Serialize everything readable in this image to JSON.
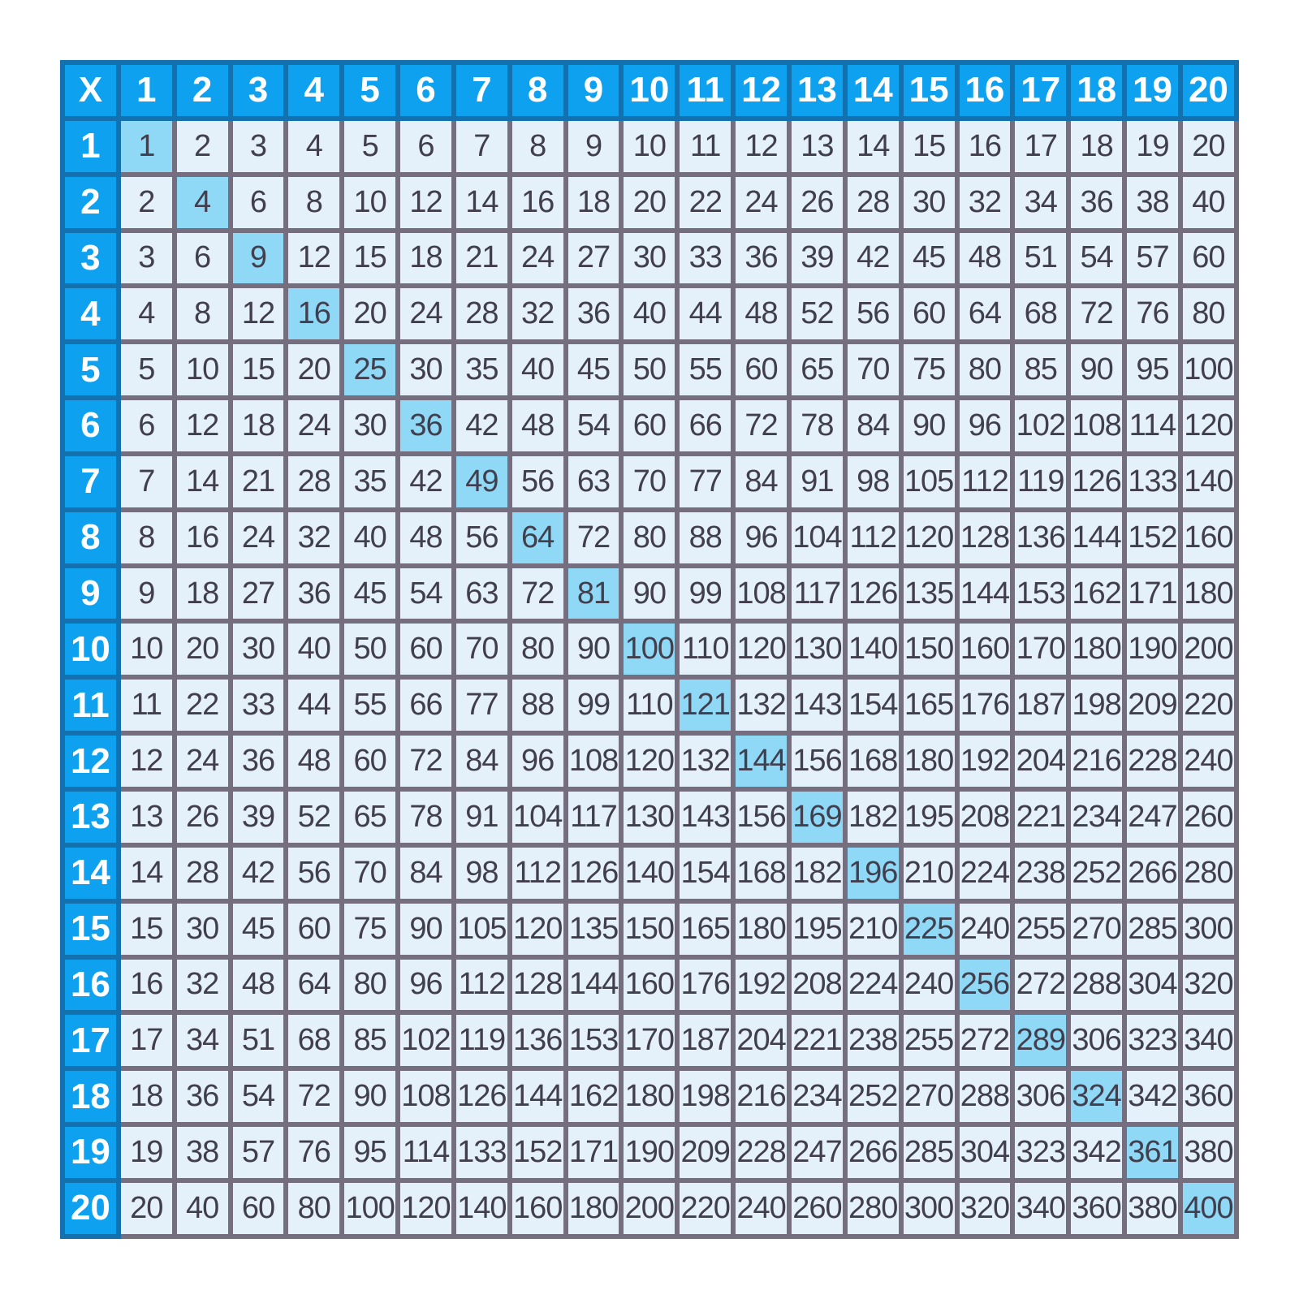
{
  "chart_data": {
    "type": "table",
    "corner_label": "X",
    "col_headers": [
      "1",
      "2",
      "3",
      "4",
      "5",
      "6",
      "7",
      "8",
      "9",
      "10",
      "11",
      "12",
      "13",
      "14",
      "15",
      "16",
      "17",
      "18",
      "19",
      "20"
    ],
    "row_headers": [
      "1",
      "2",
      "3",
      "4",
      "5",
      "6",
      "7",
      "8",
      "9",
      "10",
      "11",
      "12",
      "13",
      "14",
      "15",
      "16",
      "17",
      "18",
      "19",
      "20"
    ],
    "rows": [
      [
        1,
        2,
        3,
        4,
        5,
        6,
        7,
        8,
        9,
        10,
        11,
        12,
        13,
        14,
        15,
        16,
        17,
        18,
        19,
        20
      ],
      [
        2,
        4,
        6,
        8,
        10,
        12,
        14,
        16,
        18,
        20,
        22,
        24,
        26,
        28,
        30,
        32,
        34,
        36,
        38,
        40
      ],
      [
        3,
        6,
        9,
        12,
        15,
        18,
        21,
        24,
        27,
        30,
        33,
        36,
        39,
        42,
        45,
        48,
        51,
        54,
        57,
        60
      ],
      [
        4,
        8,
        12,
        16,
        20,
        24,
        28,
        32,
        36,
        40,
        44,
        48,
        52,
        56,
        60,
        64,
        68,
        72,
        76,
        80
      ],
      [
        5,
        10,
        15,
        20,
        25,
        30,
        35,
        40,
        45,
        50,
        55,
        60,
        65,
        70,
        75,
        80,
        85,
        90,
        95,
        100
      ],
      [
        6,
        12,
        18,
        24,
        30,
        36,
        42,
        48,
        54,
        60,
        66,
        72,
        78,
        84,
        90,
        96,
        102,
        108,
        114,
        120
      ],
      [
        7,
        14,
        21,
        28,
        35,
        42,
        49,
        56,
        63,
        70,
        77,
        84,
        91,
        98,
        105,
        112,
        119,
        126,
        133,
        140
      ],
      [
        8,
        16,
        24,
        32,
        40,
        48,
        56,
        64,
        72,
        80,
        88,
        96,
        104,
        112,
        120,
        128,
        136,
        144,
        152,
        160
      ],
      [
        9,
        18,
        27,
        36,
        45,
        54,
        63,
        72,
        81,
        90,
        99,
        108,
        117,
        126,
        135,
        144,
        153,
        162,
        171,
        180
      ],
      [
        10,
        20,
        30,
        40,
        50,
        60,
        70,
        80,
        90,
        100,
        110,
        120,
        130,
        140,
        150,
        160,
        170,
        180,
        190,
        200
      ],
      [
        11,
        22,
        33,
        44,
        55,
        66,
        77,
        88,
        99,
        110,
        121,
        132,
        143,
        154,
        165,
        176,
        187,
        198,
        209,
        220
      ],
      [
        12,
        24,
        36,
        48,
        60,
        72,
        84,
        96,
        108,
        120,
        132,
        144,
        156,
        168,
        180,
        192,
        204,
        216,
        228,
        240
      ],
      [
        13,
        26,
        39,
        52,
        65,
        78,
        91,
        104,
        117,
        130,
        143,
        156,
        169,
        182,
        195,
        208,
        221,
        234,
        247,
        260
      ],
      [
        14,
        28,
        42,
        56,
        70,
        84,
        98,
        112,
        126,
        140,
        154,
        168,
        182,
        196,
        210,
        224,
        238,
        252,
        266,
        280
      ],
      [
        15,
        30,
        45,
        60,
        75,
        90,
        105,
        120,
        135,
        150,
        165,
        180,
        195,
        210,
        225,
        240,
        255,
        270,
        285,
        300
      ],
      [
        16,
        32,
        48,
        64,
        80,
        96,
        112,
        128,
        144,
        160,
        176,
        192,
        208,
        224,
        240,
        256,
        272,
        288,
        304,
        320
      ],
      [
        17,
        34,
        51,
        68,
        85,
        102,
        119,
        136,
        153,
        170,
        187,
        204,
        221,
        238,
        255,
        272,
        289,
        306,
        323,
        340
      ],
      [
        18,
        36,
        54,
        72,
        90,
        108,
        126,
        144,
        162,
        180,
        198,
        216,
        234,
        252,
        270,
        288,
        306,
        324,
        342,
        360
      ],
      [
        19,
        38,
        57,
        76,
        95,
        114,
        133,
        152,
        171,
        190,
        209,
        228,
        247,
        266,
        285,
        304,
        323,
        342,
        361,
        380
      ],
      [
        20,
        40,
        60,
        80,
        100,
        120,
        140,
        160,
        180,
        200,
        220,
        240,
        260,
        280,
        300,
        320,
        340,
        360,
        380,
        400
      ]
    ],
    "layout_hints": {
      "highlighted_cells": "main diagonal (perfect squares n×n)",
      "grid": "on",
      "header_row_and_column": true
    }
  },
  "colors": {
    "page_bg": "#ffffff",
    "header_bg": "#0da1ef",
    "header_border": "#1471af",
    "header_text": "#ffffff",
    "cell_bg": "#e4f1fa",
    "cell_border": "#756e7e",
    "cell_text": "#413e4e",
    "diagonal_bg": "#8fd8f6"
  }
}
